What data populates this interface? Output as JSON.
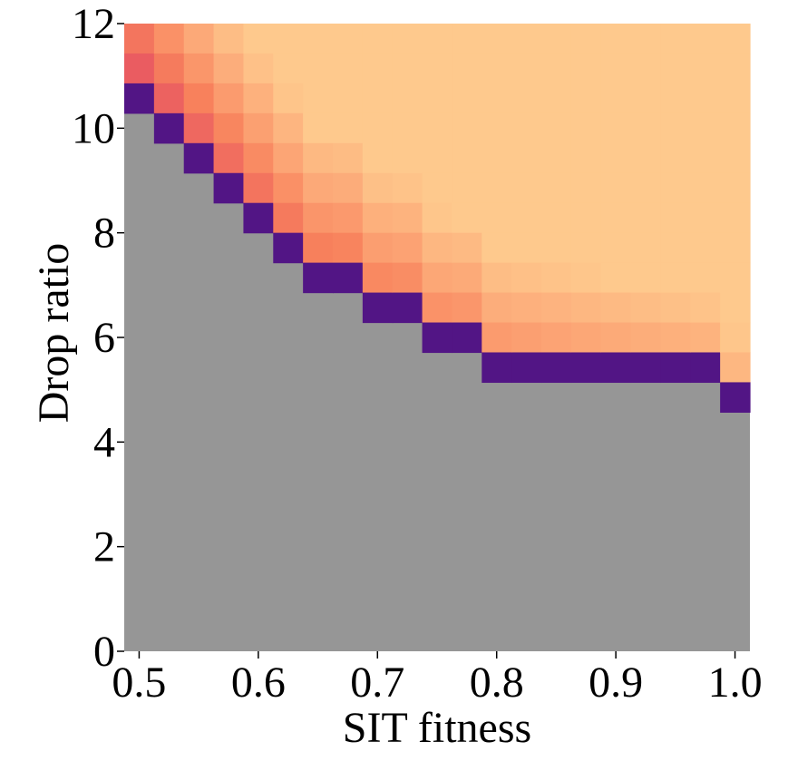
{
  "chart_data": {
    "type": "heatmap",
    "title": "",
    "xlabel": "SIT fitness",
    "ylabel": "Drop ratio",
    "xlim": [
      0.5,
      1.0
    ],
    "ylim": [
      0,
      12
    ],
    "x_cell_width": 0.025,
    "y_cell_height": 0.6,
    "x_ticks": [
      "0.5",
      "0.6",
      "0.7",
      "0.8",
      "0.9",
      "1.0"
    ],
    "y_ticks": [
      "0",
      "2",
      "4",
      "6",
      "8",
      "10",
      "12"
    ],
    "grid": false,
    "no_data_color": "#969696",
    "colormap": "magma",
    "colormap_note": "no colorbar shown",
    "colors": {
      "boundary": "#521585",
      "background_gray": "#969696",
      "high": "#fec98d"
    },
    "boundary_drop_ratio": [
      10.5,
      10.2,
      9.9,
      9.6,
      9.3,
      9.0,
      8.7,
      8.4,
      8.1,
      7.8,
      7.5,
      7.2,
      6.9,
      6.9,
      6.6,
      6.6,
      6.3,
      6.3,
      6.3,
      6.0,
      6.0,
      6.0,
      6.0,
      5.7,
      5.7,
      5.4,
      5.4,
      5.4,
      5.1,
      5.1,
      5.1,
      5.1,
      5.1,
      5.1,
      5.1,
      5.1,
      4.8,
      4.8
    ]
  }
}
